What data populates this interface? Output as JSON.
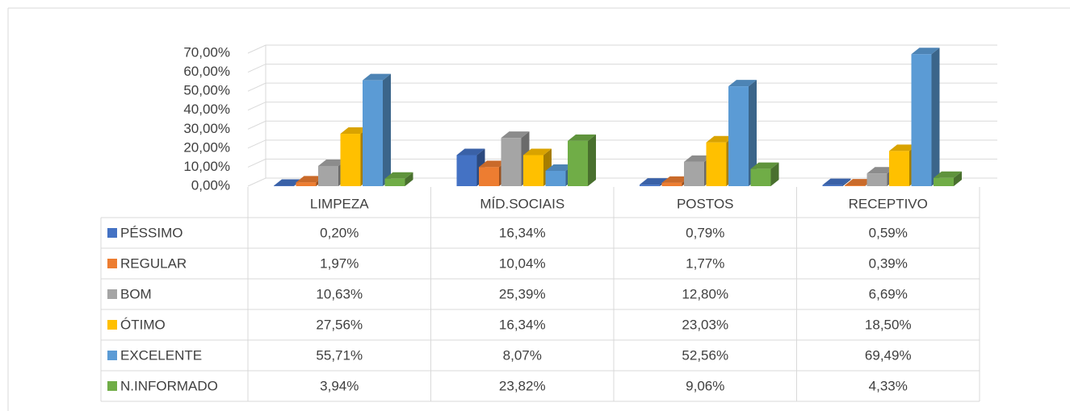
{
  "chart_data": {
    "type": "bar3d",
    "categories": [
      "LIMPEZA",
      "MÍD.SOCIAIS",
      "POSTOS",
      "RECEPTIVO"
    ],
    "series": [
      {
        "name": "PÉSSIMO",
        "color": "#4472c4",
        "values": [
          0.2,
          16.34,
          0.79,
          0.59
        ],
        "value_labels": [
          "0,20%",
          "16,34%",
          "0,79%",
          "0,59%"
        ]
      },
      {
        "name": "REGULAR",
        "color": "#ed7d31",
        "values": [
          1.97,
          10.04,
          1.77,
          0.39
        ],
        "value_labels": [
          "1,97%",
          "10,04%",
          "1,77%",
          "0,39%"
        ]
      },
      {
        "name": "BOM",
        "color": "#a5a5a5",
        "values": [
          10.63,
          25.39,
          12.8,
          6.69
        ],
        "value_labels": [
          "10,63%",
          "25,39%",
          "12,80%",
          "6,69%"
        ]
      },
      {
        "name": "ÓTIMO",
        "color": "#ffc000",
        "values": [
          27.56,
          16.34,
          23.03,
          18.5
        ],
        "value_labels": [
          "27,56%",
          "16,34%",
          "23,03%",
          "18,50%"
        ]
      },
      {
        "name": "EXCELENTE",
        "color": "#5b9bd5",
        "values": [
          55.71,
          8.07,
          52.56,
          69.49
        ],
        "value_labels": [
          "55,71%",
          "8,07%",
          "52,56%",
          "69,49%"
        ]
      },
      {
        "name": "N.INFORMADO",
        "color": "#70ad47",
        "values": [
          3.94,
          23.82,
          9.06,
          4.33
        ],
        "value_labels": [
          "3,94%",
          "23,82%",
          "9,06%",
          "4,33%"
        ]
      }
    ],
    "ylim": [
      0,
      70
    ],
    "yticks": [
      {
        "value": 0,
        "label": "0,00%"
      },
      {
        "value": 10,
        "label": "10,00%"
      },
      {
        "value": 20,
        "label": "20,00%"
      },
      {
        "value": 30,
        "label": "30,00%"
      },
      {
        "value": 40,
        "label": "40,00%"
      },
      {
        "value": 50,
        "label": "50,00%"
      },
      {
        "value": 60,
        "label": "60,00%"
      },
      {
        "value": 70,
        "label": "70,00%"
      }
    ],
    "grid": true
  }
}
